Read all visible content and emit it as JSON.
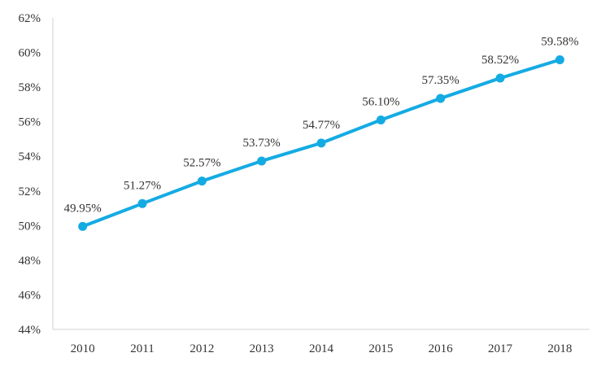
{
  "chart_data": {
    "type": "line",
    "title": "",
    "xlabel": "",
    "ylabel": "",
    "categories": [
      "2010",
      "2011",
      "2012",
      "2013",
      "2014",
      "2015",
      "2016",
      "2017",
      "2018"
    ],
    "series": [
      {
        "values": [
          49.95,
          51.27,
          52.57,
          53.73,
          54.77,
          56.1,
          57.35,
          58.52,
          59.58
        ],
        "data_labels": [
          "49.95%",
          "51.27%",
          "52.57%",
          "53.73%",
          "54.77%",
          "56.10%",
          "57.35%",
          "58.52%",
          "59.58%"
        ],
        "color": "#14ABE3"
      }
    ],
    "ylim": [
      44,
      62
    ],
    "yticks": [
      44,
      46,
      48,
      50,
      52,
      54,
      56,
      58,
      60,
      62
    ],
    "ytick_labels": [
      "44%",
      "46%",
      "48%",
      "50%",
      "52%",
      "54%",
      "56%",
      "58%",
      "60%",
      "62%"
    ],
    "grid": false,
    "legend": "none"
  }
}
